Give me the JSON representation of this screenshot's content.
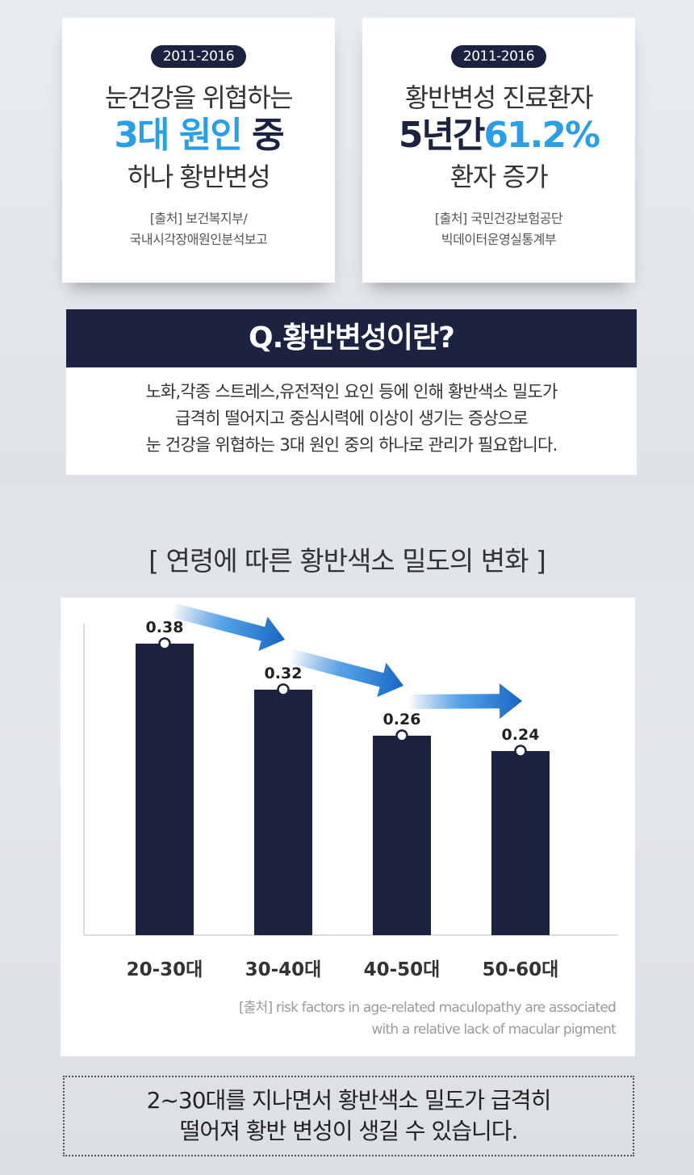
{
  "card_left": {
    "period": "2011-2016",
    "line1": "눈건강을 위협하는",
    "line2_highlight": "3대 원인",
    "line2_rest": " 중",
    "line3": "하나 황반변성",
    "source_line1": "[출처] 보건복지부/",
    "source_line2": "국내시각장애원인분석보고"
  },
  "card_right": {
    "period": "2011-2016",
    "line1": "황반변성 진료환자",
    "line2_prefix": "5년간",
    "line2_highlight": "61.2%",
    "line3": "환자 증가",
    "source_line1": "[출처] 국민건강보험공단",
    "source_line2": "빅데이터운영실통계부"
  },
  "question": {
    "title": "Q.황반변성이란?",
    "line1": "노화,각종 스트레스,유전적인 요인 등에 인해 황반색소 밀도가",
    "line2": "급격히 떨어지고 중심시력에 이상이 생기는 증상으로",
    "line3": "눈 건강을 위협하는 3대 원인 중의 하나로 관리가 필요합니다."
  },
  "section_title": "[ 연령에 따른 황반색소 밀도의 변화 ]",
  "chart_source": {
    "line1": "[출처] risk factors in age-related maculopathy are associated",
    "line2": "with a relative lack of macular pigment"
  },
  "bottom_note": {
    "line1": "2~30대를 지나면서 황반색소 밀도가 급격히",
    "line2": "떨어져 황반 변성이 생길 수 있습니다."
  },
  "colors": {
    "bar": "#1b2340",
    "highlight_blue": "#2a9fe6",
    "arrow": "#1a6fc9"
  },
  "chart_data": {
    "type": "bar",
    "categories": [
      "20-30대",
      "30-40대",
      "40-50대",
      "50-60대"
    ],
    "values": [
      0.38,
      0.32,
      0.26,
      0.24
    ],
    "data_labels": [
      "0.38",
      "0.32",
      "0.26",
      "0.24"
    ],
    "title": "[ 연령에 따른 황반색소 밀도의 변화 ]",
    "xlabel": "",
    "ylabel": "",
    "ylim": [
      0,
      0.44
    ],
    "grid": false,
    "legend": "none",
    "annotations": "downward arrows between consecutive bars"
  }
}
